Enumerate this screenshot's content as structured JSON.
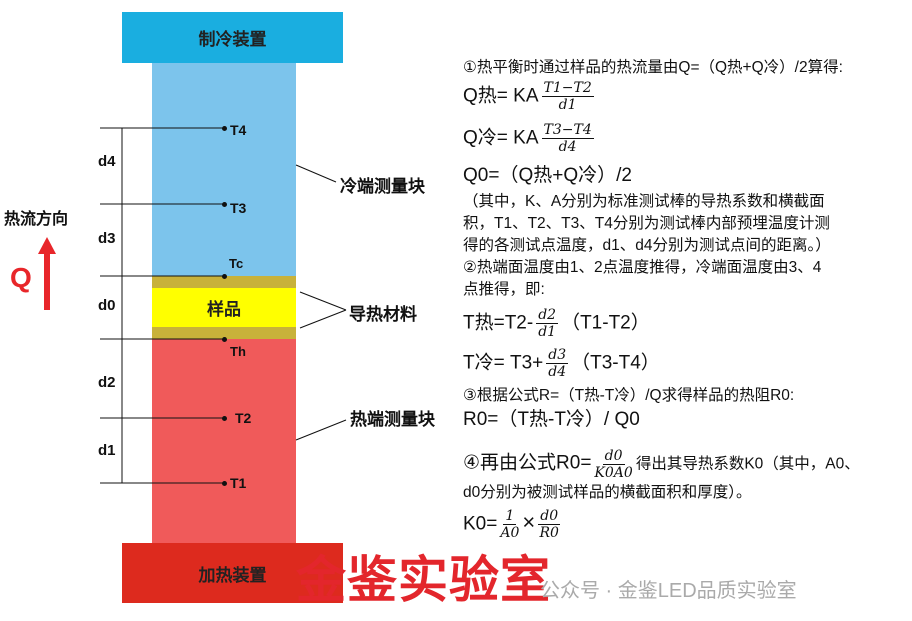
{
  "apparatus": {
    "cooler": "制冷装置",
    "heater": "加热装置",
    "sample": "样品",
    "cold_block": "冷端测量块",
    "material": "导热材料",
    "hot_block": "热端测量块",
    "colors": {
      "cooler": "#1aaee0",
      "cold": "#7cc4ec",
      "gold": "#c8b23a",
      "sample": "#ffff00",
      "hot": "#f05a5a",
      "heater": "#dd2a1e"
    }
  },
  "points": [
    "T4",
    "T3",
    "Tc",
    "Th",
    "T2",
    "T1"
  ],
  "distances": [
    "d4",
    "d3",
    "d0",
    "d2",
    "d1"
  ],
  "flow": {
    "label": "热流方向",
    "symbol": "Q"
  },
  "text": {
    "l1": "①热平衡时通过样品的热流量由Q=（Q热+Q冷）/2算得:",
    "qhot_lhs": "Q热= KA",
    "qhot_num": "T1−T2",
    "qhot_den": "d1",
    "qcold_lhs": "Q冷= KA",
    "qcold_num": "T3−T4",
    "qcold_den": "d4",
    "q0": "Q0=（Q热+Q冷）/2",
    "note1": "（其中，K、A分别为标准测试棒的导热系数和横截面",
    "note2": "积，T1、T2、T3、T4分别为测试棒内部预埋温度计测",
    "note3": "得的各测试点温度，d1、d4分别为测试点间的距离。）",
    "l2a": "②热端面温度由1、2点温度推得，冷端面温度由3、4",
    "l2b": "点推得，即:",
    "thot_lhs": "T热=T2-",
    "thot_num": "d2",
    "thot_den": "d1",
    "thot_rhs": "（T1-T2）",
    "tcold_lhs": "T冷= T3+",
    "tcold_num": "d3",
    "tcold_den": "d4",
    "tcold_rhs": "（T3-T4）",
    "l3": "③根据公式R=（T热-T冷）/Q求得样品的热阻R0:",
    "r0": "R0=（T热-T冷）/ Q0",
    "l4_pre": "④再由公式R0=",
    "l4_num": "d0",
    "l4_den": "K0A0",
    "l4_post": "得出其导热系数K0（其中，A0、",
    "l4b": "d0分别为被测试样品的横截面积和厚度）。",
    "k0_lhs": "K0=",
    "k0_n1": "1",
    "k0_d1": "A0",
    "k0_x": "×",
    "k0_n2": "d0",
    "k0_d2": "R0"
  },
  "watermark": {
    "red": "金鉴实验室",
    "grey": "公众号 · 金鉴LED品质实验室"
  }
}
